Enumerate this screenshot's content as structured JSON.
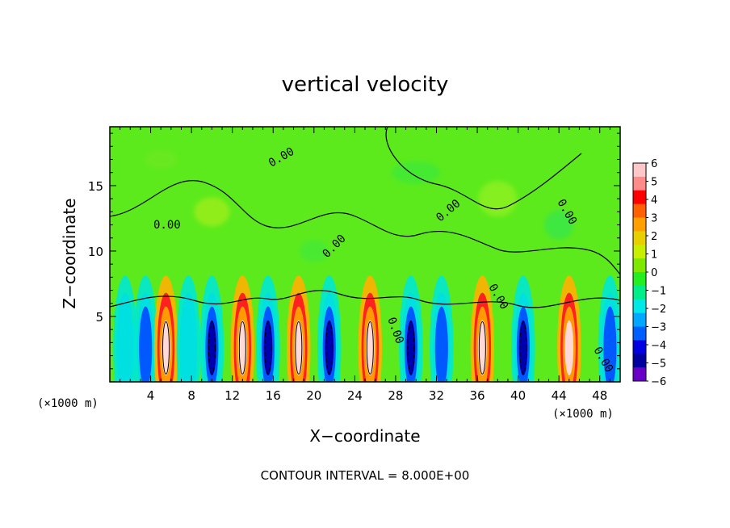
{
  "chart_data": {
    "type": "heatmap",
    "title": "vertical velocity",
    "xlabel": "X−coordinate",
    "ylabel": "Z−coordinate",
    "x_unit_left": "(×1000 m)",
    "x_unit_right": "(×1000 m)",
    "xlim": [
      0,
      50
    ],
    "ylim": [
      0,
      19.5
    ],
    "xticks": [
      4,
      8,
      12,
      16,
      20,
      24,
      28,
      32,
      36,
      40,
      44,
      48
    ],
    "yticks": [
      5,
      10,
      15
    ],
    "note": "CONTOUR INTERVAL = 8.000E+00",
    "contour_label": "0.00",
    "colorbar": {
      "ticks": [
        "6",
        "5",
        "4",
        "3",
        "2",
        "1",
        "0",
        "−1",
        "−2",
        "−3",
        "−4",
        "−5",
        "−6"
      ],
      "colors": [
        "#ffc8c8",
        "#ff8a8a",
        "#ff0000",
        "#ff6000",
        "#ffa000",
        "#e8d000",
        "#c8ee00",
        "#7fe800",
        "#22ee22",
        "#00ee88",
        "#00e8e8",
        "#00a8ff",
        "#0060ff",
        "#0000e0",
        "#0000a0",
        "#6a00c8"
      ]
    },
    "cells": [
      {
        "x": 1.5,
        "sign": "-",
        "strength": 2.5
      },
      {
        "x": 3.5,
        "sign": "-",
        "strength": 3
      },
      {
        "x": 5.5,
        "sign": "+",
        "strength": 6
      },
      {
        "x": 7.7,
        "sign": "-",
        "strength": 2
      },
      {
        "x": 10,
        "sign": "-",
        "strength": 6
      },
      {
        "x": 13,
        "sign": "+",
        "strength": 6
      },
      {
        "x": 15.5,
        "sign": "-",
        "strength": 6
      },
      {
        "x": 18.5,
        "sign": "+",
        "strength": 6
      },
      {
        "x": 21.5,
        "sign": "-",
        "strength": 6
      },
      {
        "x": 25.5,
        "sign": "+",
        "strength": 6
      },
      {
        "x": 29.5,
        "sign": "-",
        "strength": 6
      },
      {
        "x": 32.5,
        "sign": "-",
        "strength": 3
      },
      {
        "x": 36.5,
        "sign": "+",
        "strength": 6
      },
      {
        "x": 40.5,
        "sign": "-",
        "strength": 6
      },
      {
        "x": 45,
        "sign": "+",
        "strength": 5
      },
      {
        "x": 49,
        "sign": "-",
        "strength": 3
      }
    ]
  }
}
